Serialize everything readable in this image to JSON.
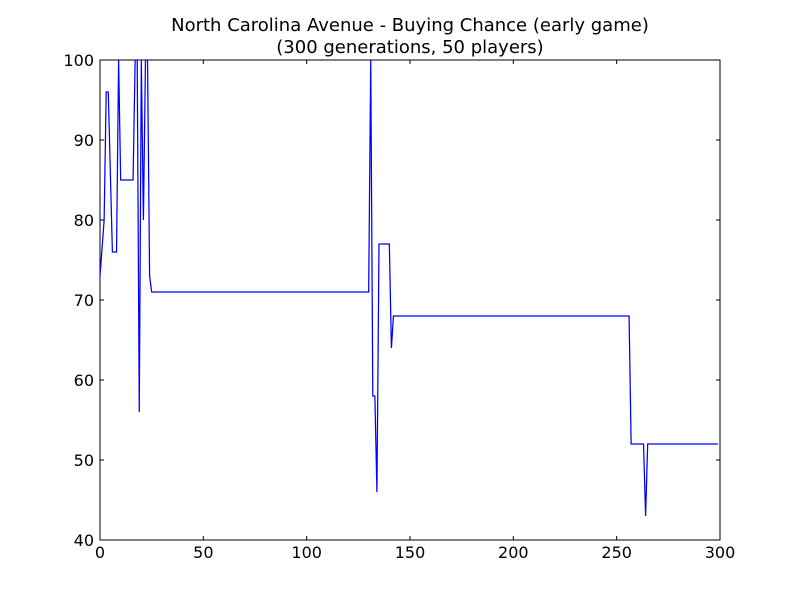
{
  "chart_data": {
    "type": "line",
    "title": "North Carolina Avenue - Buying Chance (early game)",
    "subtitle": "(300 generations, 50 players)",
    "xlabel": "",
    "ylabel": "",
    "xlim": [
      0,
      300
    ],
    "ylim": [
      40,
      100
    ],
    "xticks": [
      "0",
      "50",
      "100",
      "150",
      "200",
      "250",
      "300"
    ],
    "yticks": [
      "40",
      "50",
      "60",
      "70",
      "80",
      "90",
      "100"
    ],
    "grid": false,
    "legend": "none",
    "series": [
      {
        "color": "#0000ff",
        "x": [
          0,
          2,
          3,
          4,
          5,
          6,
          7,
          8,
          9,
          10,
          11,
          12,
          13,
          14,
          15,
          16,
          17,
          18,
          19,
          20,
          21,
          22,
          23,
          24,
          25,
          26,
          130,
          131,
          132,
          133,
          134,
          135,
          136,
          137,
          138,
          139,
          140,
          141,
          142,
          143,
          144,
          145,
          255,
          256,
          257,
          258,
          259,
          260,
          261,
          262,
          263,
          264,
          265,
          266,
          267,
          299
        ],
        "y": [
          73,
          80,
          96,
          96,
          86,
          76,
          76,
          76,
          100,
          85,
          85,
          85,
          85,
          85,
          85,
          85,
          100,
          100,
          56,
          100,
          80,
          100,
          100,
          73,
          71,
          71,
          71,
          100,
          58,
          58,
          46,
          77,
          77,
          77,
          77,
          77,
          77,
          64,
          68,
          68,
          68,
          68,
          68,
          68,
          52,
          52,
          52,
          52,
          52,
          52,
          52,
          43,
          52,
          52,
          52,
          52
        ]
      }
    ]
  }
}
